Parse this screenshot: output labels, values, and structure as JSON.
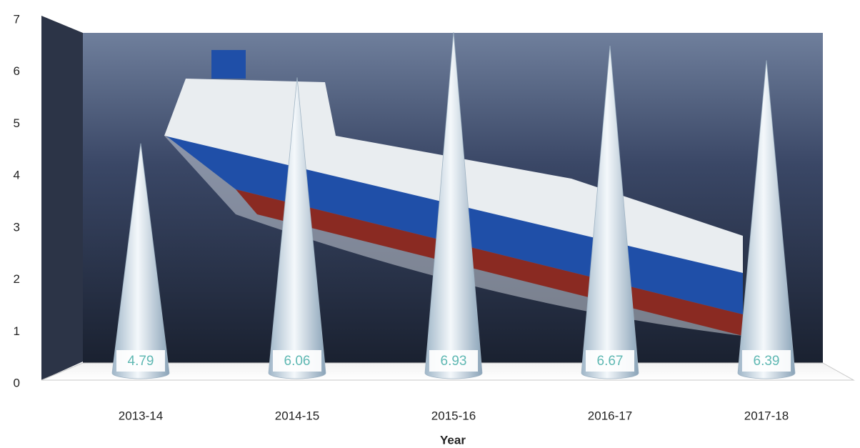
{
  "chart_data": {
    "type": "cone",
    "categories": [
      "2013-14",
      "2014-15",
      "2015-16",
      "2016-17",
      "2017-18"
    ],
    "values": [
      4.79,
      6.06,
      6.93,
      6.67,
      6.39
    ],
    "color": "#dce9f2",
    "label_color": "#5fb8b3",
    "x_label": "Year",
    "ylim": [
      0,
      7
    ],
    "yticks": [
      0,
      1,
      2,
      3,
      4,
      5,
      6,
      7
    ],
    "grid": false
  }
}
